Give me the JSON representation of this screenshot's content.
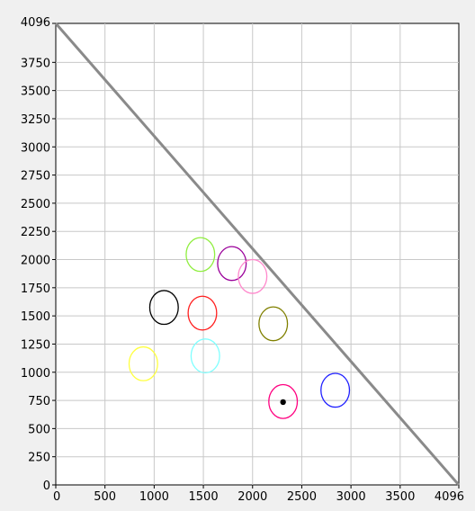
{
  "chart_data": {
    "type": "scatter",
    "title": "",
    "xlabel": "",
    "ylabel": "",
    "xlim": [
      0,
      4096
    ],
    "ylim": [
      0,
      4096
    ],
    "grid": true,
    "x_ticks": [
      0,
      500,
      1000,
      1500,
      2000,
      2500,
      3000,
      3500,
      4096
    ],
    "y_ticks": [
      0,
      250,
      500,
      750,
      1000,
      1250,
      1500,
      1750,
      2000,
      2250,
      2500,
      2750,
      3000,
      3250,
      3500,
      3750,
      4096
    ],
    "boundary_line": {
      "color": "#8a8a8a",
      "points": [
        [
          0,
          4096
        ],
        [
          4096,
          0
        ]
      ]
    },
    "ellipses": [
      {
        "color": "#90ee40",
        "cx": 1470,
        "cy": 2045,
        "rx": 145,
        "ry": 150
      },
      {
        "color": "#9a009a",
        "cx": 1790,
        "cy": 1965,
        "rx": 145,
        "ry": 150
      },
      {
        "color": "#ff88cc",
        "cx": 2000,
        "cy": 1850,
        "rx": 145,
        "ry": 150
      },
      {
        "color": "#000000",
        "cx": 1100,
        "cy": 1575,
        "rx": 145,
        "ry": 150
      },
      {
        "color": "#ff2020",
        "cx": 1490,
        "cy": 1525,
        "rx": 145,
        "ry": 150
      },
      {
        "color": "#808000",
        "cx": 2210,
        "cy": 1430,
        "rx": 145,
        "ry": 150
      },
      {
        "color": "#ffff40",
        "cx": 890,
        "cy": 1075,
        "rx": 145,
        "ry": 150
      },
      {
        "color": "#80ffff",
        "cx": 1520,
        "cy": 1145,
        "rx": 145,
        "ry": 150
      },
      {
        "color": "#ff0080",
        "cx": 2310,
        "cy": 740,
        "rx": 145,
        "ry": 150
      },
      {
        "color": "#2020ff",
        "cx": 2840,
        "cy": 840,
        "rx": 145,
        "ry": 150
      }
    ],
    "marker_point": {
      "x": 2310,
      "y": 735,
      "color": "#000000"
    }
  }
}
